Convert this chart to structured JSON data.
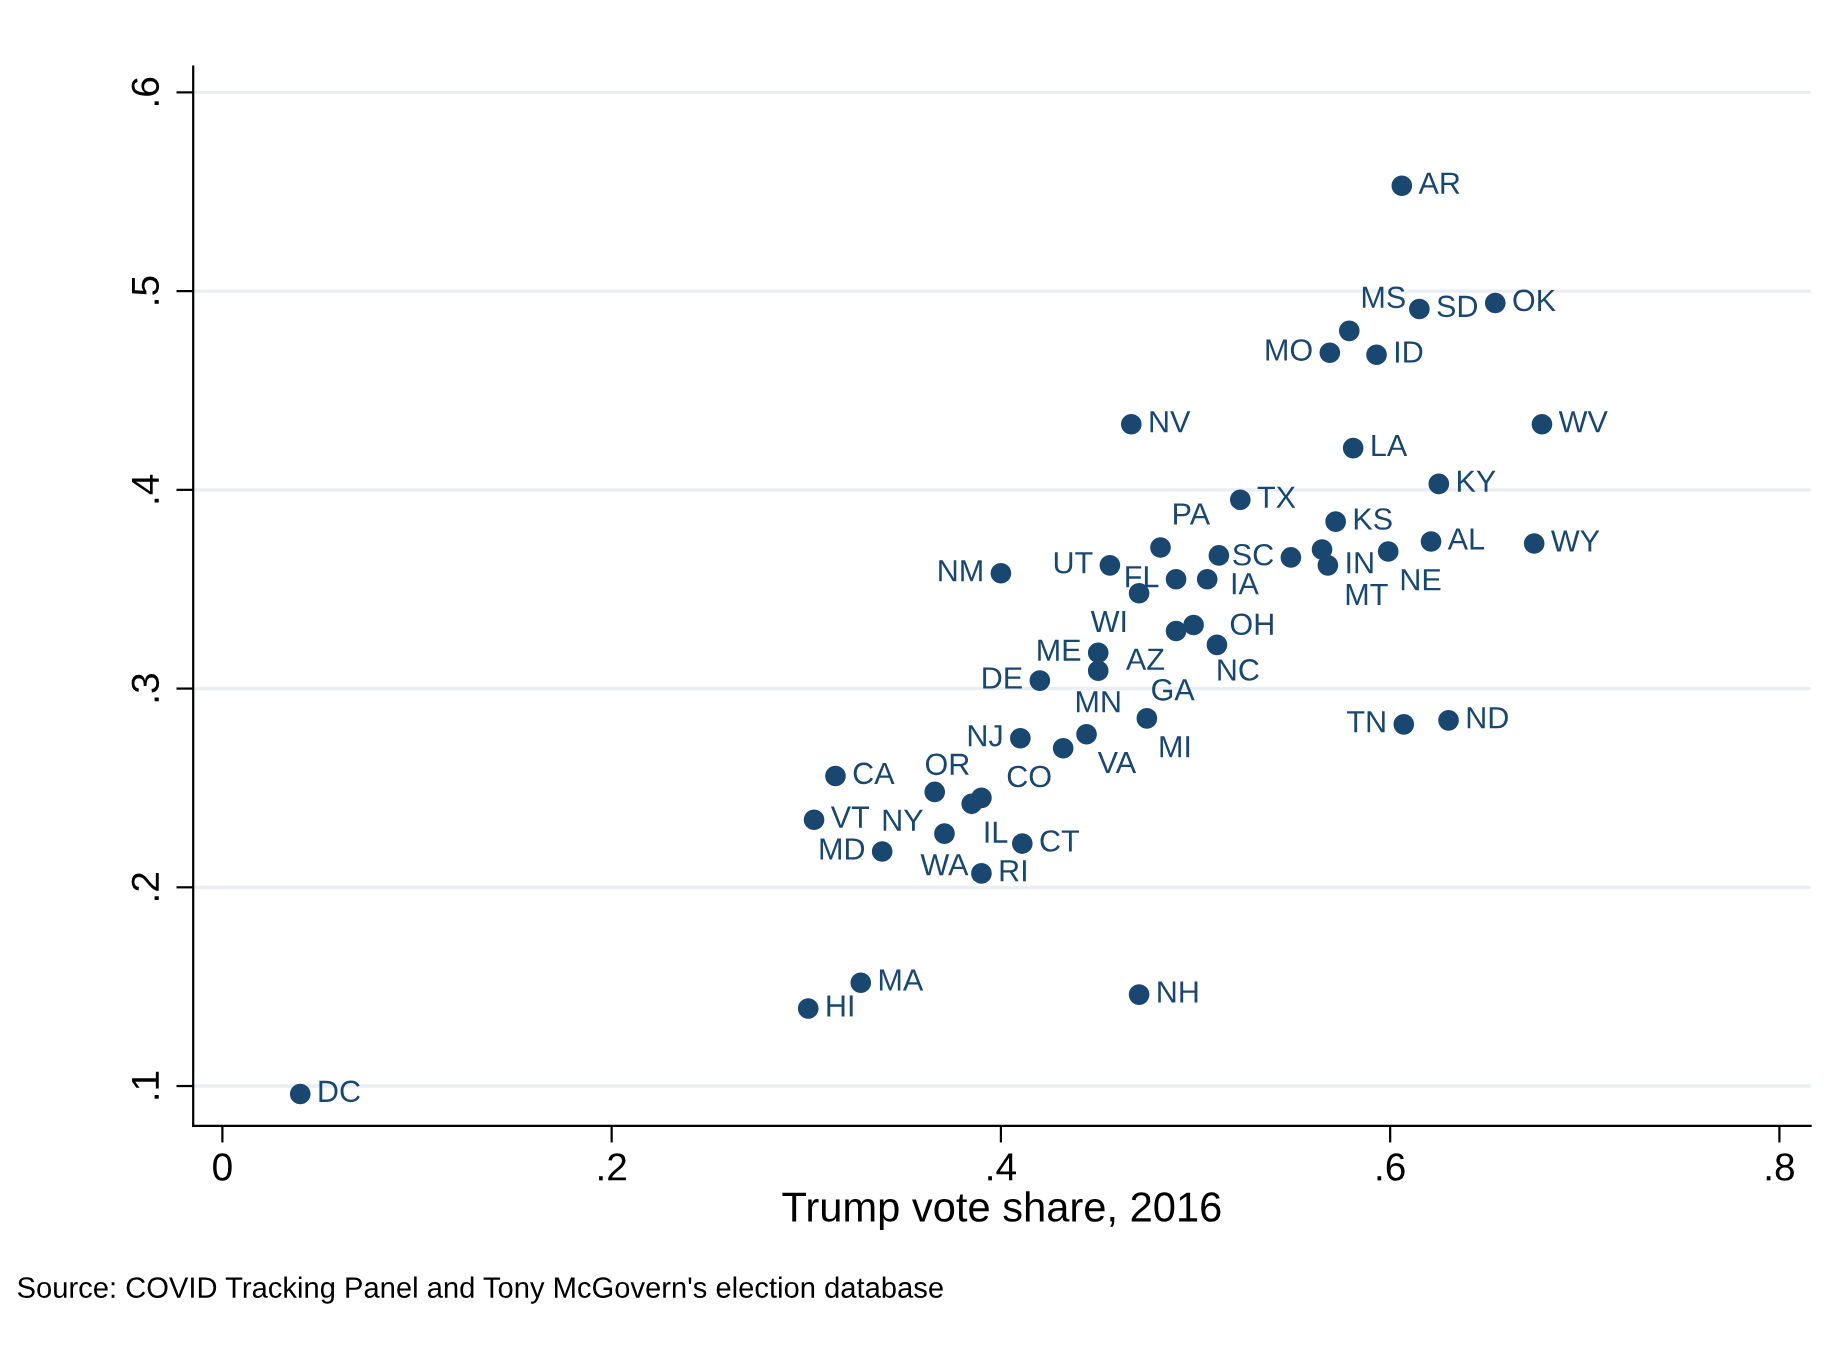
{
  "chart_data": {
    "type": "scatter",
    "xlabel": "Trump vote share, 2016",
    "marker": "circle",
    "grid": "y",
    "xlim": [
      -0.015,
      0.816
    ],
    "ylim": [
      0.08,
      0.613
    ],
    "xticks": [
      {
        "value": 0,
        "label": "0"
      },
      {
        "value": 0.2,
        "label": ".2"
      },
      {
        "value": 0.4,
        "label": ".4"
      },
      {
        "value": 0.6,
        "label": ".6"
      },
      {
        "value": 0.8,
        "label": ".8"
      }
    ],
    "yticks": [
      {
        "value": 0.1,
        "label": ".1"
      },
      {
        "value": 0.2,
        "label": ".2"
      },
      {
        "value": 0.3,
        "label": ".3"
      },
      {
        "value": 0.4,
        "label": ".4"
      },
      {
        "value": 0.5,
        "label": ".5"
      },
      {
        "value": 0.6,
        "label": ".6"
      }
    ],
    "series": [
      {
        "color": "#1a476f",
        "x": [
          0.606,
          0.615,
          0.654,
          0.579,
          0.569,
          0.593,
          0.467,
          0.678,
          0.581,
          0.625,
          0.523,
          0.572,
          0.621,
          0.674,
          0.599,
          0.565,
          0.568,
          0.549,
          0.482,
          0.512,
          0.456,
          0.4,
          0.471,
          0.49,
          0.506,
          0.49,
          0.499,
          0.511,
          0.45,
          0.45,
          0.42,
          0.475,
          0.607,
          0.63,
          0.41,
          0.444,
          0.432,
          0.315,
          0.366,
          0.385,
          0.39,
          0.304,
          0.371,
          0.411,
          0.339,
          0.39,
          0.328,
          0.301,
          0.471,
          0.04
        ],
        "values": [
          0.553,
          0.491,
          0.494,
          0.48,
          0.469,
          0.468,
          0.433,
          0.433,
          0.421,
          0.403,
          0.395,
          0.384,
          0.374,
          0.373,
          0.369,
          0.37,
          0.362,
          0.366,
          0.371,
          0.367,
          0.362,
          0.358,
          0.348,
          0.355,
          0.355,
          0.329,
          0.332,
          0.322,
          0.318,
          0.309,
          0.304,
          0.285,
          0.282,
          0.284,
          0.275,
          0.277,
          0.27,
          0.256,
          0.248,
          0.242,
          0.245,
          0.234,
          0.227,
          0.222,
          0.218,
          0.207,
          0.152,
          0.139,
          0.146,
          0.096
        ]
      }
    ],
    "annotations": [
      {
        "text": "AR",
        "x": 0.606,
        "y": 0.553
      },
      {
        "text": "SD",
        "x": 0.615,
        "y": 0.491
      },
      {
        "text": "OK",
        "x": 0.654,
        "y": 0.494
      },
      {
        "text": "MS",
        "x": 0.579,
        "y": 0.48
      },
      {
        "text": "MO",
        "x": 0.569,
        "y": 0.469
      },
      {
        "text": "ID",
        "x": 0.593,
        "y": 0.468
      },
      {
        "text": "NV",
        "x": 0.467,
        "y": 0.433
      },
      {
        "text": "WV",
        "x": 0.678,
        "y": 0.433
      },
      {
        "text": "LA",
        "x": 0.581,
        "y": 0.421
      },
      {
        "text": "KY",
        "x": 0.625,
        "y": 0.403
      },
      {
        "text": "TX",
        "x": 0.523,
        "y": 0.395
      },
      {
        "text": "KS",
        "x": 0.572,
        "y": 0.384
      },
      {
        "text": "AL",
        "x": 0.621,
        "y": 0.374
      },
      {
        "text": "WY",
        "x": 0.674,
        "y": 0.373
      },
      {
        "text": "NE",
        "x": 0.599,
        "y": 0.369
      },
      {
        "text": "MT",
        "x": 0.565,
        "y": 0.37
      },
      {
        "text": "IN",
        "x": 0.568,
        "y": 0.362
      },
      {
        "text": "SC",
        "x": 0.549,
        "y": 0.366
      },
      {
        "text": "PA",
        "x": 0.482,
        "y": 0.371
      },
      {
        "text": "IA",
        "x": 0.512,
        "y": 0.367
      },
      {
        "text": "UT",
        "x": 0.456,
        "y": 0.362
      },
      {
        "text": "NM",
        "x": 0.4,
        "y": 0.358
      },
      {
        "text": "WI",
        "x": 0.471,
        "y": 0.348
      },
      {
        "text": "FL",
        "x": 0.49,
        "y": 0.355
      },
      {
        "text": "OH",
        "x": 0.506,
        "y": 0.355
      },
      {
        "text": "AZ",
        "x": 0.49,
        "y": 0.329
      },
      {
        "text": "NC",
        "x": 0.499,
        "y": 0.332
      },
      {
        "text": "GA",
        "x": 0.511,
        "y": 0.322
      },
      {
        "text": "ME",
        "x": 0.45,
        "y": 0.318
      },
      {
        "text": "MN",
        "x": 0.45,
        "y": 0.309
      },
      {
        "text": "DE",
        "x": 0.42,
        "y": 0.304
      },
      {
        "text": "MI",
        "x": 0.475,
        "y": 0.285
      },
      {
        "text": "TN",
        "x": 0.607,
        "y": 0.282
      },
      {
        "text": "ND",
        "x": 0.63,
        "y": 0.284
      },
      {
        "text": "NJ",
        "x": 0.41,
        "y": 0.275
      },
      {
        "text": "VA",
        "x": 0.444,
        "y": 0.277
      },
      {
        "text": "CO",
        "x": 0.432,
        "y": 0.27
      },
      {
        "text": "CA",
        "x": 0.315,
        "y": 0.256
      },
      {
        "text": "NY",
        "x": 0.366,
        "y": 0.248
      },
      {
        "text": "IL",
        "x": 0.385,
        "y": 0.242
      },
      {
        "text": "OR",
        "x": 0.39,
        "y": 0.245
      },
      {
        "text": "VT",
        "x": 0.304,
        "y": 0.234
      },
      {
        "text": "WA",
        "x": 0.371,
        "y": 0.227
      },
      {
        "text": "CT",
        "x": 0.411,
        "y": 0.222
      },
      {
        "text": "MD",
        "x": 0.339,
        "y": 0.218
      },
      {
        "text": "RI",
        "x": 0.39,
        "y": 0.207
      },
      {
        "text": "MA",
        "x": 0.328,
        "y": 0.152
      },
      {
        "text": "HI",
        "x": 0.301,
        "y": 0.139
      },
      {
        "text": "NH",
        "x": 0.471,
        "y": 0.146
      },
      {
        "text": "DC",
        "x": 0.04,
        "y": 0.096
      },
      "Source: COVID Tracking Panel and Tony McGovern's election database"
    ]
  }
}
